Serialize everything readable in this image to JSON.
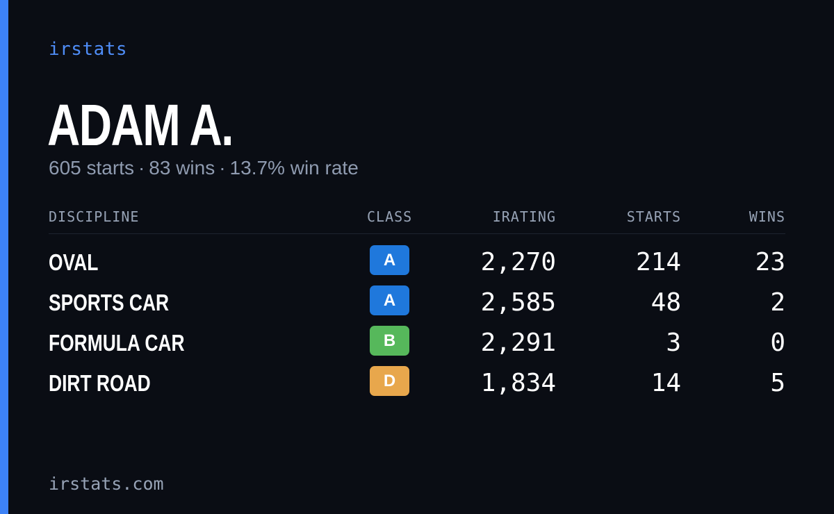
{
  "brand": "irstats",
  "player": {
    "name": "ADAM A.",
    "starts_text": "605 starts",
    "wins_text": "83 wins",
    "win_rate_text": "13.7% win rate",
    "separator": "·"
  },
  "table": {
    "headers": {
      "discipline": "DISCIPLINE",
      "class": "CLASS",
      "irating": "IRATING",
      "starts": "STARTS",
      "wins": "WINS"
    },
    "rows": [
      {
        "discipline": "OVAL",
        "class": "A",
        "class_color": "#1f78dc",
        "irating": "2,270",
        "starts": "214",
        "wins": "23"
      },
      {
        "discipline": "SPORTS CAR",
        "class": "A",
        "class_color": "#1f78dc",
        "irating": "2,585",
        "starts": "48",
        "wins": "2"
      },
      {
        "discipline": "FORMULA CAR",
        "class": "B",
        "class_color": "#56b85b",
        "irating": "2,291",
        "starts": "3",
        "wins": "0"
      },
      {
        "discipline": "DIRT ROAD",
        "class": "D",
        "class_color": "#e8a74c",
        "irating": "1,834",
        "starts": "14",
        "wins": "5"
      }
    ]
  },
  "footer": "irstats.com",
  "colors": {
    "background": "#0a0d14",
    "accent": "#3d82f6",
    "brand": "#4f8df7",
    "muted": "#97a3b6",
    "text": "#ffffff"
  }
}
